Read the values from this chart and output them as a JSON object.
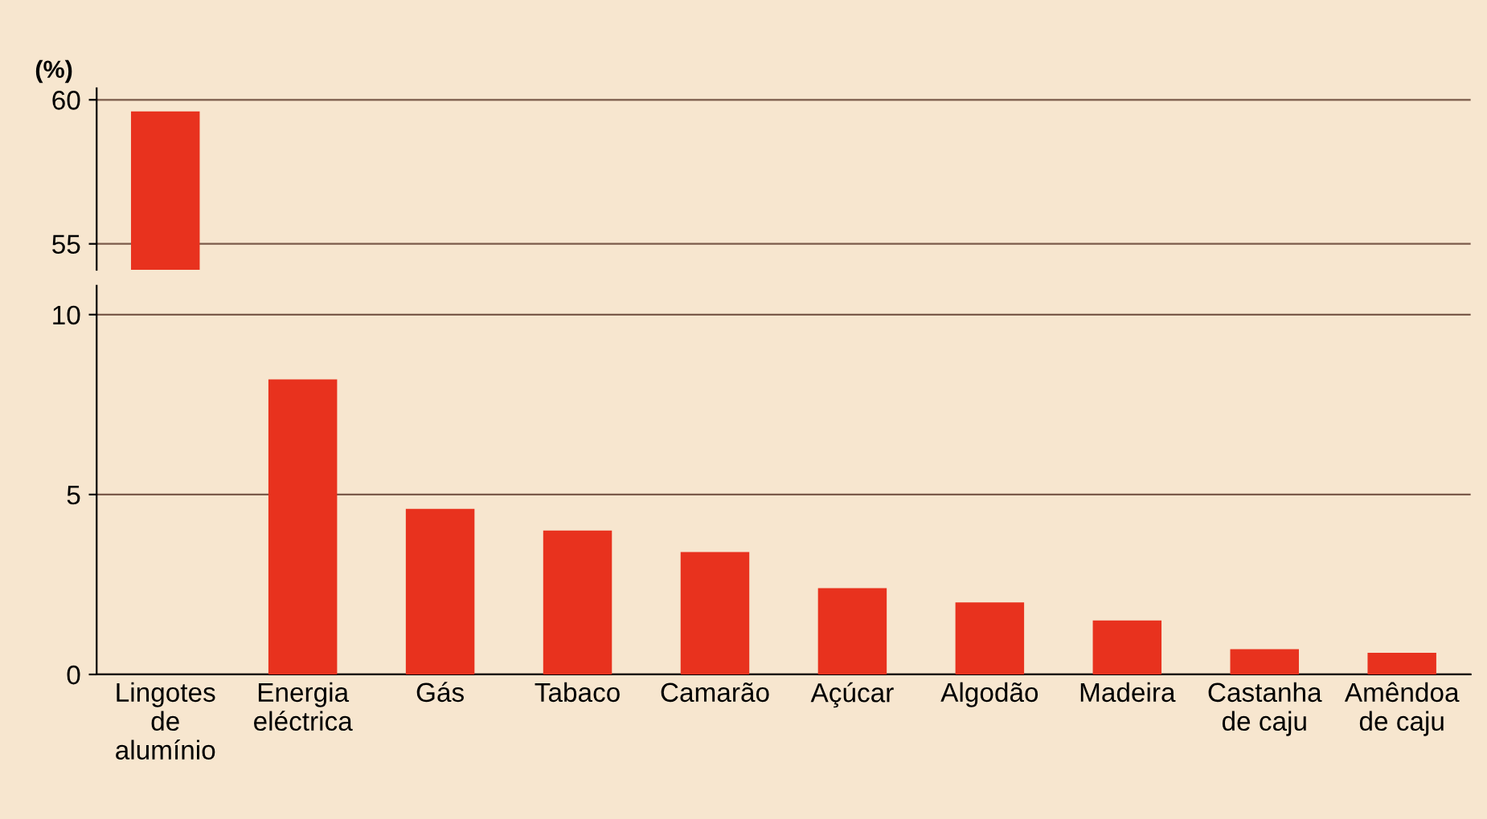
{
  "chart_data": [
    {
      "type": "bar",
      "ylabel": "(%)",
      "categories": [
        null,
        null,
        null,
        null,
        null,
        null,
        null,
        null,
        null,
        null
      ],
      "values": [
        59.6,
        null,
        null,
        null,
        null,
        null,
        null,
        null,
        null,
        null
      ],
      "color": "#e8321e",
      "ylim": [
        54.1,
        60.4
      ],
      "yticks": [
        55,
        60
      ],
      "grid": "y",
      "tick_labels": "y"
    },
    {
      "type": "bar",
      "categories": [
        "Lingotes\nde\nalumínio",
        "Energia\neléctrica",
        "Gás",
        "Tabaco",
        "Camarão",
        "Açúcar",
        "Algodão",
        "Madeira",
        "Castanha\nde caju",
        "Amêndoa\nde caju"
      ],
      "values": [
        null,
        8.2,
        4.6,
        4.0,
        3.4,
        2.4,
        2.0,
        1.5,
        0.7,
        0.6
      ],
      "color": "#e8321e",
      "ylim": [
        0,
        10.8
      ],
      "yticks": [
        0,
        5,
        10
      ],
      "grid": "y"
    }
  ]
}
